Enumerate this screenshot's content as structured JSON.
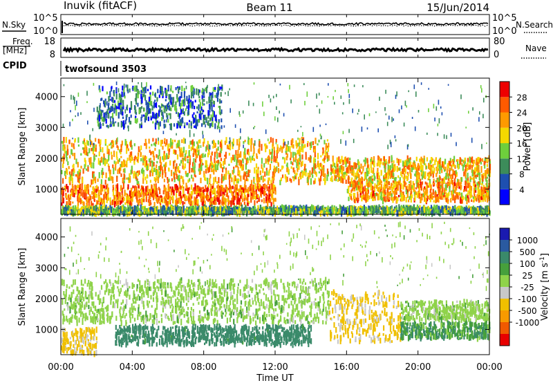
{
  "header": {
    "title": "Inuvik (fitACF)",
    "beam": "Beam 11",
    "date": "15/Jun/2014"
  },
  "params": {
    "nsky_label": "N.Sky",
    "nsearch_label": "N.Search",
    "freq_label": "Freq.",
    "freq_unit": "[MHz]",
    "nave_label": "Nave",
    "cpid_label": "CPID",
    "cpid_value": "twofsound 3503",
    "noise_ticks": [
      "10^5",
      "10^0"
    ],
    "freq_ticks": [
      "18",
      "8"
    ],
    "nave_ticks": [
      "80",
      "0"
    ]
  },
  "axes": {
    "xlabel": "Time UT",
    "ylabel": "Slant Range [km]",
    "xticks": [
      "00:00",
      "04:00",
      "08:00",
      "12:00",
      "16:00",
      "20:00",
      "00:00"
    ],
    "yticks": [
      "1000",
      "2000",
      "3000",
      "4000"
    ]
  },
  "colorbars": {
    "power": {
      "label": "Power [dB]",
      "ticks": [
        "4",
        "8",
        "12",
        "16",
        "20",
        "24",
        "28"
      ],
      "colors": [
        "#0000ff",
        "#1e4fb0",
        "#3c8c5a",
        "#6ecf3c",
        "#f5d800",
        "#ff9a00",
        "#ff5a00",
        "#ee0000"
      ]
    },
    "velocity": {
      "label": "Velocity [m s^-1]",
      "ticks": [
        "1000",
        "500",
        "100",
        "25",
        "-25",
        "-100",
        "-500",
        "-1000"
      ],
      "colors": [
        "#1a1ab0",
        "#2a5aa0",
        "#3a8a6a",
        "#46a03c",
        "#8fd34a",
        "#c8c8c8",
        "#f0c000",
        "#f79a00",
        "#f05a00",
        "#e80000"
      ]
    }
  },
  "chart_data": [
    {
      "type": "heatmap",
      "title": "Power",
      "xlabel": "Time UT",
      "ylabel": "Slant Range [km]",
      "xlim": [
        "00:00",
        "24:00"
      ],
      "ylim": [
        180,
        4600
      ],
      "colorbar_label": "Power [dB]",
      "colorbar_range": [
        0,
        32
      ],
      "bands": [
        {
          "t_start": 0.0,
          "t_end": 15.0,
          "range_low": 1200,
          "range_high": 2600,
          "power_db": 20
        },
        {
          "t_start": 15.0,
          "t_end": 24.0,
          "range_low": 1200,
          "range_high": 2000,
          "power_db": 20
        },
        {
          "t_start": 0.0,
          "t_end": 12.0,
          "range_low": 500,
          "range_high": 1100,
          "power_db": 24
        },
        {
          "t_start": 16.0,
          "t_end": 24.0,
          "range_low": 600,
          "range_high": 1200,
          "power_db": 22
        },
        {
          "t_start": 0.0,
          "t_end": 24.0,
          "range_low": 200,
          "range_high": 400,
          "power_db": 12
        },
        {
          "t_start": 2.0,
          "t_end": 9.0,
          "range_low": 3000,
          "range_high": 4300,
          "power_db": 8
        }
      ]
    },
    {
      "type": "heatmap",
      "title": "Velocity",
      "xlabel": "Time UT",
      "ylabel": "Slant Range [km]",
      "xlim": [
        "00:00",
        "24:00"
      ],
      "ylim": [
        180,
        4600
      ],
      "colorbar_label": "Velocity [m s^-1]",
      "colorbar_range": [
        -1000,
        1000
      ],
      "bands": [
        {
          "t_start": 0.0,
          "t_end": 15.0,
          "range_low": 1200,
          "range_high": 2600,
          "velocity": 0
        },
        {
          "t_start": 15.0,
          "t_end": 19.0,
          "range_low": 600,
          "range_high": 2200,
          "velocity": -150
        },
        {
          "t_start": 19.0,
          "t_end": 24.0,
          "range_low": 1300,
          "range_high": 1900,
          "velocity": 0
        },
        {
          "t_start": 3.0,
          "t_end": 14.0,
          "range_low": 500,
          "range_high": 1100,
          "velocity": 250
        },
        {
          "t_start": 19.0,
          "t_end": 24.0,
          "range_low": 700,
          "range_high": 1200,
          "velocity": 80
        },
        {
          "t_start": 0.0,
          "t_end": 2.0,
          "range_low": 200,
          "range_high": 1000,
          "velocity": -150
        }
      ]
    }
  ]
}
